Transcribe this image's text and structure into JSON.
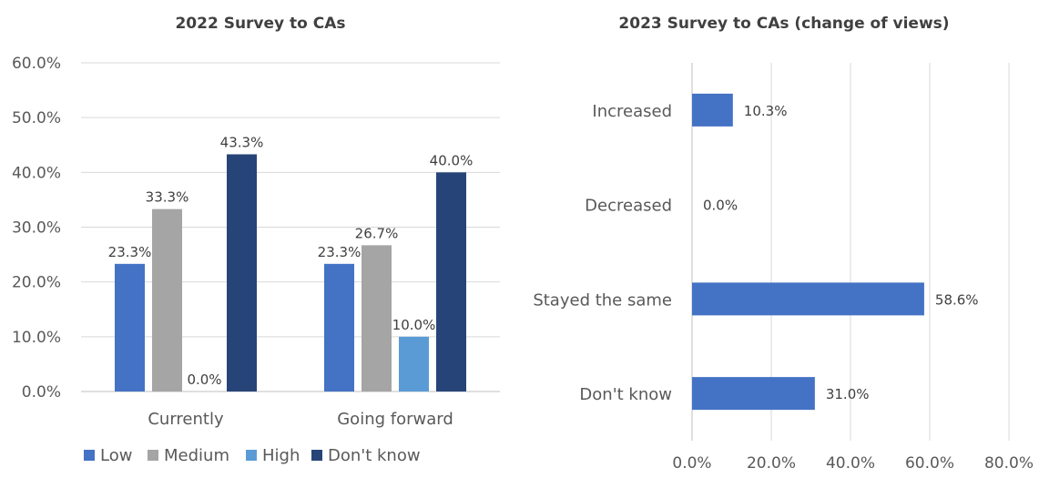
{
  "chart_data": [
    {
      "type": "bar",
      "title": "2022 Survey to CAs",
      "categories": [
        "Currently",
        "Going forward"
      ],
      "series": [
        {
          "name": "Low",
          "values": [
            23.3,
            23.3
          ],
          "color": "#4472c4"
        },
        {
          "name": "Medium",
          "values": [
            33.3,
            26.7
          ],
          "color": "#a5a5a5"
        },
        {
          "name": "High",
          "values": [
            0.0,
            10.0
          ],
          "color": "#5b9bd5"
        },
        {
          "name": "Don't know",
          "values": [
            43.3,
            40.0
          ],
          "color": "#264478"
        }
      ],
      "ylim": [
        0,
        60
      ],
      "yticks": [
        "0.0%",
        "10.0%",
        "20.0%",
        "30.0%",
        "40.0%",
        "50.0%",
        "60.0%"
      ],
      "ytick_values": [
        0,
        10,
        20,
        30,
        40,
        50,
        60
      ],
      "data_labels": [
        [
          "23.3%",
          "23.3%"
        ],
        [
          "33.3%",
          "26.7%"
        ],
        [
          "0.0%",
          "10.0%"
        ],
        [
          "43.3%",
          "40.0%"
        ]
      ],
      "grid": true,
      "legend": "bottom"
    },
    {
      "type": "bar",
      "orientation": "horizontal",
      "title": "2023 Survey to CAs (change of views)",
      "categories": [
        "Increased",
        "Decreased",
        "Stayed the same",
        "Don't know"
      ],
      "values": [
        10.3,
        0.0,
        58.6,
        31.0
      ],
      "data_labels": [
        "10.3%",
        "0.0%",
        "58.6%",
        "31.0%"
      ],
      "color": "#4472c4",
      "xlim": [
        0,
        80
      ],
      "xticks": [
        "0.0%",
        "20.0%",
        "40.0%",
        "60.0%",
        "80.0%"
      ],
      "xtick_values": [
        0,
        20,
        40,
        60,
        80
      ],
      "grid": true
    }
  ]
}
